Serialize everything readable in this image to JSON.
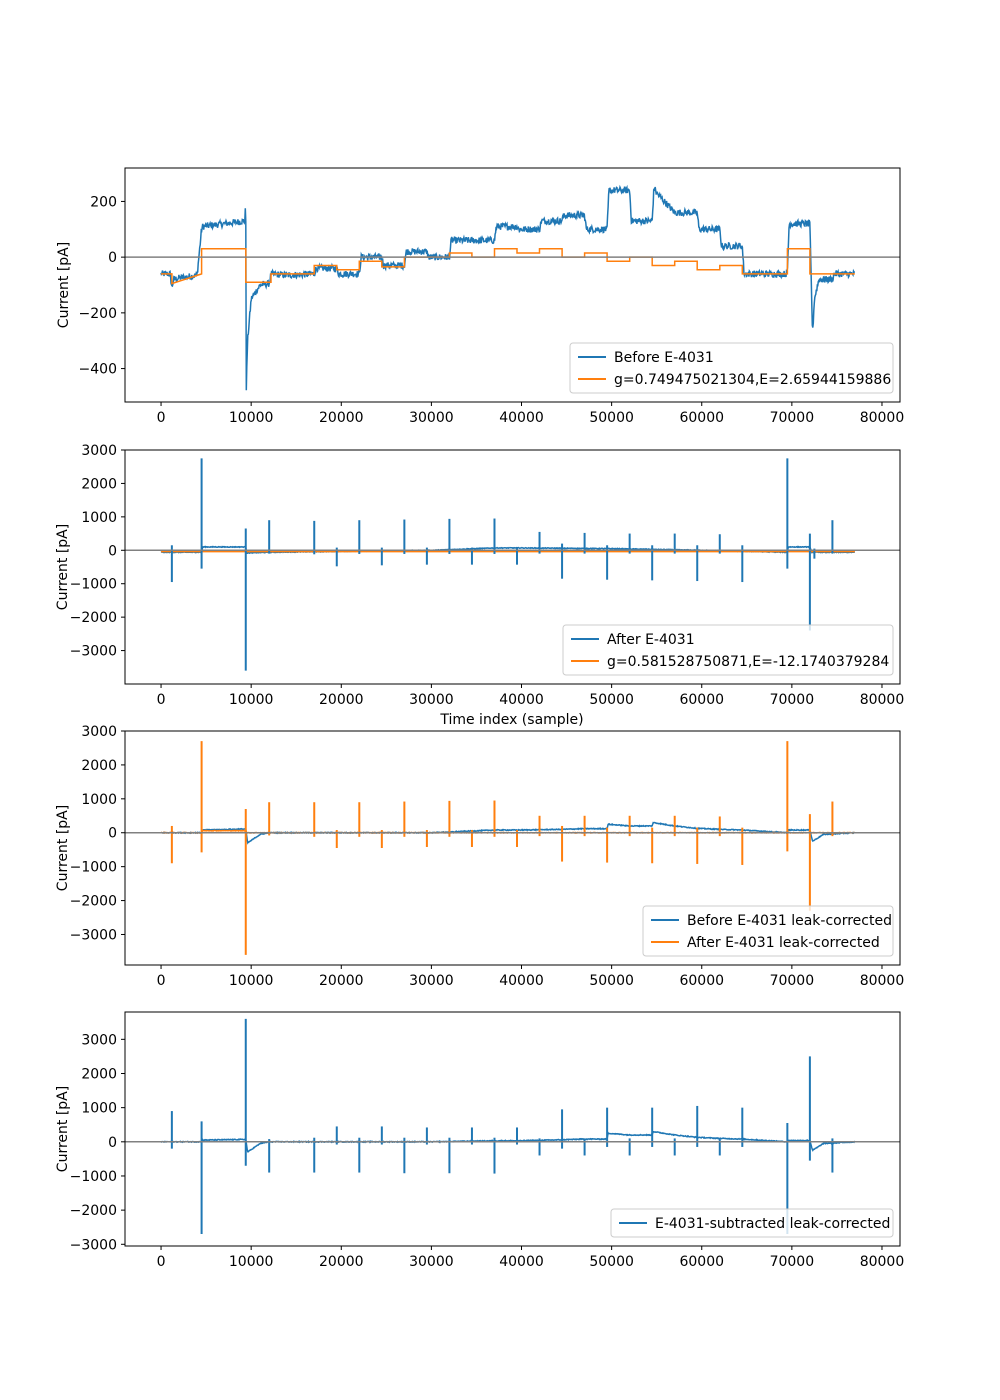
{
  "colors": {
    "blue": "#1f77b4",
    "orange": "#ff7f0e",
    "zero_line": "#808080"
  },
  "x_axis_label_between_panels_2_3": "Time index (sample)",
  "chart_data": [
    {
      "type": "line",
      "ylabel": "Current [pA]",
      "xlabel": "",
      "xlim": [
        -4000,
        82000
      ],
      "ylim": [
        -520,
        320
      ],
      "xticks": [
        0,
        10000,
        20000,
        30000,
        40000,
        50000,
        60000,
        70000,
        80000
      ],
      "yticks": [
        -400,
        -200,
        0,
        200
      ],
      "ytick_labels": [
        "−400",
        "−200",
        "0",
        "200"
      ],
      "xtick_labels": [
        "0",
        "10000",
        "20000",
        "30000",
        "40000",
        "50000",
        "60000",
        "70000",
        "80000"
      ],
      "zero_line": true,
      "legend_position": "lower-right",
      "series": [
        {
          "name": "Before E-4031",
          "color": "#1f77b4",
          "noise": 12,
          "x": [
            0,
            1000,
            1200,
            1400,
            2000,
            4000,
            4500,
            4600,
            7000,
            9300,
            9400,
            9450,
            9600,
            10000,
            11000,
            12000,
            12200,
            14000,
            17000,
            17200,
            19500,
            19700,
            22000,
            22200,
            24500,
            24700,
            27000,
            27200,
            29500,
            29700,
            32000,
            32200,
            34500,
            34700,
            37000,
            37200,
            39500,
            39700,
            42000,
            42200,
            44500,
            44700,
            47000,
            47200,
            49500,
            49700,
            52000,
            52200,
            54500,
            54700,
            55000,
            57000,
            59500,
            59700,
            62000,
            62200,
            64500,
            64700,
            69500,
            69700,
            72000,
            72300,
            72500,
            73000,
            74500,
            74700,
            77000
          ],
          "y": [
            -60,
            -60,
            -110,
            -80,
            -75,
            -65,
            100,
            110,
            120,
            130,
            200,
            -480,
            -300,
            -150,
            -100,
            -95,
            -60,
            -65,
            -60,
            -40,
            -40,
            -60,
            -60,
            0,
            0,
            -30,
            -30,
            20,
            20,
            0,
            0,
            60,
            60,
            60,
            60,
            110,
            110,
            100,
            100,
            130,
            130,
            150,
            150,
            100,
            100,
            240,
            240,
            130,
            130,
            250,
            230,
            160,
            160,
            100,
            100,
            40,
            40,
            -60,
            -60,
            120,
            120,
            -280,
            -150,
            -80,
            -80,
            -60,
            -60
          ]
        },
        {
          "name": "g=0.749475021304,E=2.65944159886",
          "color": "#ff7f0e",
          "noise": 0,
          "x": [
            0,
            1200,
            1200,
            4500,
            4500,
            9400,
            9400,
            12200,
            12200,
            17000,
            17000,
            19500,
            19500,
            22000,
            22000,
            24500,
            24500,
            27000,
            27000,
            29700,
            29700,
            32000,
            32000,
            34500,
            34500,
            37000,
            37000,
            39500,
            39500,
            42000,
            42000,
            44500,
            44500,
            47000,
            47000,
            49500,
            49500,
            52000,
            52000,
            54500,
            54500,
            57000,
            57000,
            59500,
            59500,
            62000,
            62000,
            64500,
            64500,
            69500,
            69500,
            72000,
            72000,
            77000
          ],
          "y": [
            -60,
            -60,
            -95,
            -60,
            30,
            30,
            -90,
            -90,
            -60,
            -60,
            -30,
            -30,
            -45,
            -45,
            -15,
            -15,
            -35,
            -35,
            0,
            0,
            0,
            0,
            15,
            15,
            0,
            0,
            30,
            30,
            15,
            15,
            30,
            30,
            0,
            0,
            15,
            15,
            -15,
            -15,
            0,
            0,
            -30,
            -30,
            -15,
            -15,
            -45,
            -45,
            -30,
            -30,
            -60,
            -60,
            30,
            30,
            -60,
            -60
          ]
        }
      ]
    },
    {
      "type": "line",
      "ylabel": "Current [pA]",
      "xlabel": "Time index (sample)",
      "xlim": [
        -4000,
        82000
      ],
      "ylim": [
        -4000,
        3000
      ],
      "xticks": [
        0,
        10000,
        20000,
        30000,
        40000,
        50000,
        60000,
        70000,
        80000
      ],
      "yticks": [
        -3000,
        -2000,
        -1000,
        0,
        1000,
        2000,
        3000
      ],
      "ytick_labels": [
        "−3000",
        "−2000",
        "−1000",
        "0",
        "1000",
        "2000",
        "3000"
      ],
      "xtick_labels": [
        "0",
        "10000",
        "20000",
        "30000",
        "40000",
        "50000",
        "60000",
        "70000",
        "80000"
      ],
      "zero_line": true,
      "legend_position": "lower-right",
      "series": [
        {
          "name": "After E-4031",
          "color": "#1f77b4",
          "noise": 10,
          "x": [
            0,
            4500,
            4600,
            9400,
            9500,
            12000,
            30000,
            37000,
            40000,
            50000,
            60000,
            69500,
            69600,
            72000,
            72200,
            77000
          ],
          "y": [
            -60,
            -60,
            100,
            100,
            -80,
            -60,
            0,
            70,
            70,
            50,
            0,
            -60,
            100,
            100,
            -60,
            -60
          ]
        },
        {
          "name": "g=0.581528750871,E=-12.1740379284",
          "color": "#ff7f0e",
          "noise": 0,
          "x": [
            0,
            77000
          ],
          "y": [
            -40,
            -40
          ]
        }
      ]
    },
    {
      "type": "line",
      "ylabel": "Current [pA]",
      "xlabel": "",
      "xlim": [
        -4000,
        82000
      ],
      "ylim": [
        -3900,
        3000
      ],
      "xticks": [
        0,
        10000,
        20000,
        30000,
        40000,
        50000,
        60000,
        70000,
        80000
      ],
      "yticks": [
        -3000,
        -2000,
        -1000,
        0,
        1000,
        2000,
        3000
      ],
      "ytick_labels": [
        "−3000",
        "−2000",
        "−1000",
        "0",
        "1000",
        "2000",
        "3000"
      ],
      "xtick_labels": [
        "0",
        "10000",
        "20000",
        "30000",
        "40000",
        "50000",
        "60000",
        "70000",
        "80000"
      ],
      "zero_line": true,
      "legend_position": "lower-right",
      "series": [
        {
          "name": "Before E-4031 leak-corrected",
          "color": "#1f77b4",
          "noise": 12,
          "x": [
            0,
            4500,
            4600,
            9400,
            9600,
            11000,
            12000,
            30000,
            37000,
            40000,
            44500,
            47000,
            49500,
            49600,
            52000,
            54500,
            54600,
            57000,
            59500,
            62000,
            64500,
            69500,
            69600,
            72000,
            72300,
            73500,
            77000
          ],
          "y": [
            0,
            0,
            80,
            110,
            -300,
            -50,
            0,
            0,
            80,
            80,
            100,
            120,
            120,
            250,
            200,
            200,
            300,
            200,
            130,
            100,
            80,
            0,
            80,
            80,
            -250,
            -50,
            0
          ]
        },
        {
          "name": "After E-4031 leak-corrected",
          "color": "#ff7f0e",
          "noise": 8,
          "x": [
            0,
            4500,
            4600,
            9400,
            9500,
            77000
          ],
          "y": [
            0,
            0,
            60,
            60,
            0,
            0
          ]
        }
      ]
    },
    {
      "type": "line",
      "ylabel": "Current [pA]",
      "xlabel": "",
      "xlim": [
        -4000,
        82000
      ],
      "ylim": [
        -3050,
        3800
      ],
      "xticks": [
        0,
        10000,
        20000,
        30000,
        40000,
        50000,
        60000,
        70000,
        80000
      ],
      "yticks": [
        -3000,
        -2000,
        -1000,
        0,
        1000,
        2000,
        3000
      ],
      "ytick_labels": [
        "−3000",
        "−2000",
        "−1000",
        "0",
        "1000",
        "2000",
        "3000"
      ],
      "xtick_labels": [
        "0",
        "10000",
        "20000",
        "30000",
        "40000",
        "50000",
        "60000",
        "70000",
        "80000"
      ],
      "zero_line": true,
      "legend_position": "lower-right",
      "series": [
        {
          "name": "E-4031-subtracted leak-corrected",
          "color": "#1f77b4",
          "noise": 12,
          "x": [
            0,
            4500,
            4600,
            9400,
            9600,
            11000,
            12000,
            30000,
            37000,
            40000,
            44500,
            47000,
            49500,
            49600,
            52000,
            54500,
            54600,
            57000,
            59500,
            62000,
            64500,
            69500,
            69600,
            72000,
            72300,
            73500,
            77000
          ],
          "y": [
            0,
            0,
            50,
            70,
            -300,
            -50,
            0,
            0,
            30,
            30,
            60,
            80,
            80,
            250,
            200,
            200,
            300,
            200,
            130,
            100,
            80,
            0,
            40,
            40,
            -250,
            -50,
            0
          ]
        }
      ]
    }
  ],
  "spikes": {
    "panel2": [
      {
        "x": 1200,
        "up": 150,
        "down": -950
      },
      {
        "x": 4500,
        "up": 2750,
        "down": -550
      },
      {
        "x": 9400,
        "up": 650,
        "down": -3600
      },
      {
        "x": 12000,
        "up": 900,
        "down": -100
      },
      {
        "x": 17000,
        "up": 880,
        "down": -120
      },
      {
        "x": 19500,
        "up": 80,
        "down": -480
      },
      {
        "x": 22000,
        "up": 900,
        "down": -110
      },
      {
        "x": 24500,
        "up": 80,
        "down": -450
      },
      {
        "x": 27000,
        "up": 920,
        "down": -110
      },
      {
        "x": 29500,
        "up": 80,
        "down": -430
      },
      {
        "x": 32000,
        "up": 940,
        "down": -110
      },
      {
        "x": 34500,
        "up": 80,
        "down": -430
      },
      {
        "x": 37000,
        "up": 950,
        "down": -110
      },
      {
        "x": 39500,
        "up": 80,
        "down": -430
      },
      {
        "x": 42000,
        "up": 550,
        "down": -100
      },
      {
        "x": 44500,
        "up": 200,
        "down": -850
      },
      {
        "x": 47000,
        "up": 520,
        "down": -100
      },
      {
        "x": 49500,
        "up": 150,
        "down": -880
      },
      {
        "x": 52000,
        "up": 500,
        "down": -100
      },
      {
        "x": 54500,
        "up": 150,
        "down": -900
      },
      {
        "x": 57000,
        "up": 500,
        "down": -100
      },
      {
        "x": 59500,
        "up": 150,
        "down": -920
      },
      {
        "x": 62000,
        "up": 480,
        "down": -100
      },
      {
        "x": 64500,
        "up": 150,
        "down": -950
      },
      {
        "x": 69500,
        "up": 2750,
        "down": -550
      },
      {
        "x": 72000,
        "up": 500,
        "down": -2400
      },
      {
        "x": 72500,
        "up": 50,
        "down": -250
      },
      {
        "x": 74500,
        "up": 900,
        "down": -100
      }
    ],
    "panel3": [
      {
        "x": 1200,
        "up": 200,
        "down": -900
      },
      {
        "x": 4500,
        "up": 2700,
        "down": -580
      },
      {
        "x": 9400,
        "up": 700,
        "down": -3600
      },
      {
        "x": 12000,
        "up": 900,
        "down": -80
      },
      {
        "x": 17000,
        "up": 900,
        "down": -120
      },
      {
        "x": 19500,
        "up": 80,
        "down": -450
      },
      {
        "x": 22000,
        "up": 900,
        "down": -120
      },
      {
        "x": 24500,
        "up": 80,
        "down": -450
      },
      {
        "x": 27000,
        "up": 920,
        "down": -120
      },
      {
        "x": 29500,
        "up": 80,
        "down": -420
      },
      {
        "x": 32000,
        "up": 940,
        "down": -120
      },
      {
        "x": 34500,
        "up": 80,
        "down": -420
      },
      {
        "x": 37000,
        "up": 950,
        "down": -120
      },
      {
        "x": 39500,
        "up": 80,
        "down": -420
      },
      {
        "x": 42000,
        "up": 500,
        "down": -100
      },
      {
        "x": 44500,
        "up": 200,
        "down": -850
      },
      {
        "x": 47000,
        "up": 500,
        "down": -100
      },
      {
        "x": 49500,
        "up": 150,
        "down": -880
      },
      {
        "x": 52000,
        "up": 500,
        "down": -100
      },
      {
        "x": 54500,
        "up": 150,
        "down": -900
      },
      {
        "x": 57000,
        "up": 500,
        "down": -100
      },
      {
        "x": 59500,
        "up": 150,
        "down": -920
      },
      {
        "x": 62000,
        "up": 480,
        "down": -100
      },
      {
        "x": 64500,
        "up": 150,
        "down": -950
      },
      {
        "x": 69500,
        "up": 2700,
        "down": -550
      },
      {
        "x": 72000,
        "up": 550,
        "down": -2300
      },
      {
        "x": 74500,
        "up": 920,
        "down": -100
      }
    ],
    "panel4": [
      {
        "x": 1200,
        "up": 900,
        "down": -200
      },
      {
        "x": 4500,
        "up": 600,
        "down": -2700
      },
      {
        "x": 9400,
        "up": 3600,
        "down": -700
      },
      {
        "x": 12000,
        "up": 80,
        "down": -900
      },
      {
        "x": 17000,
        "up": 120,
        "down": -900
      },
      {
        "x": 19500,
        "up": 450,
        "down": -80
      },
      {
        "x": 22000,
        "up": 120,
        "down": -900
      },
      {
        "x": 24500,
        "up": 450,
        "down": -80
      },
      {
        "x": 27000,
        "up": 120,
        "down": -920
      },
      {
        "x": 29500,
        "up": 420,
        "down": -80
      },
      {
        "x": 32000,
        "up": 120,
        "down": -920
      },
      {
        "x": 34500,
        "up": 420,
        "down": -80
      },
      {
        "x": 37000,
        "up": 120,
        "down": -930
      },
      {
        "x": 39500,
        "up": 420,
        "down": -80
      },
      {
        "x": 42000,
        "up": 100,
        "down": -400
      },
      {
        "x": 44500,
        "up": 950,
        "down": -200
      },
      {
        "x": 47000,
        "up": 100,
        "down": -400
      },
      {
        "x": 49500,
        "up": 1000,
        "down": -150
      },
      {
        "x": 52000,
        "up": 100,
        "down": -400
      },
      {
        "x": 54500,
        "up": 1000,
        "down": -150
      },
      {
        "x": 57000,
        "up": 100,
        "down": -400
      },
      {
        "x": 59500,
        "up": 1050,
        "down": -150
      },
      {
        "x": 62000,
        "up": 100,
        "down": -400
      },
      {
        "x": 64500,
        "up": 1000,
        "down": -150
      },
      {
        "x": 69500,
        "up": 550,
        "down": -2700
      },
      {
        "x": 72000,
        "up": 2500,
        "down": -550
      },
      {
        "x": 74500,
        "up": 100,
        "down": -900
      }
    ]
  }
}
